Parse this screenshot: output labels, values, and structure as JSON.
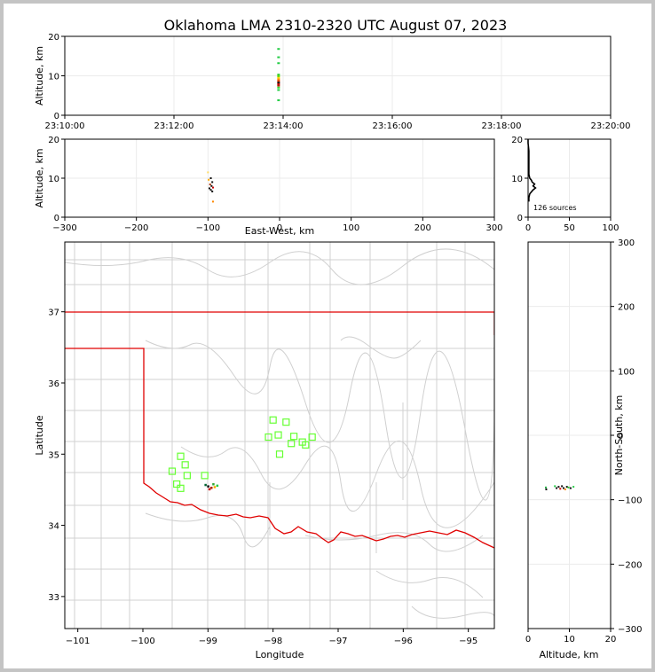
{
  "title": "Oklahoma LMA 2310-2320 UTC August 07, 2023",
  "colors": {
    "border": "#d0d0d0",
    "state_line": "#e00000",
    "station": "#66ff33",
    "grid": "#ebebeb"
  },
  "chart_data": [
    {
      "panel": "altitude-time",
      "type": "scatter",
      "ylabel": "Altitude, km",
      "ylim": [
        0,
        20
      ],
      "yticks": [
        "0",
        "10",
        "20"
      ],
      "xlim": [
        "23:10:00",
        "23:20:00"
      ],
      "xticks": [
        "23:10:00",
        "23:12:00",
        "23:14:00",
        "23:16:00",
        "23:18:00",
        "23:20:00"
      ],
      "points": [
        {
          "t": "23:13:55",
          "alt": 3.8,
          "color": "#22cc44"
        },
        {
          "t": "23:13:55",
          "alt": 6.4,
          "color": "#22cc44"
        },
        {
          "t": "23:13:55",
          "alt": 7.0,
          "color": "#33dd33"
        },
        {
          "t": "23:13:55",
          "alt": 7.5,
          "color": "#aa2200"
        },
        {
          "t": "23:13:55",
          "alt": 7.9,
          "color": "#cc0000"
        },
        {
          "t": "23:13:55",
          "alt": 8.3,
          "color": "#111111"
        },
        {
          "t": "23:13:55",
          "alt": 8.7,
          "color": "#dd3300"
        },
        {
          "t": "23:13:55",
          "alt": 9.1,
          "color": "#ff8800"
        },
        {
          "t": "23:13:55",
          "alt": 9.5,
          "color": "#ffcc00"
        },
        {
          "t": "23:13:55",
          "alt": 9.9,
          "color": "#66dd00"
        },
        {
          "t": "23:13:55",
          "alt": 10.3,
          "color": "#33cc33"
        },
        {
          "t": "23:13:55",
          "alt": 13.2,
          "color": "#22cc44"
        },
        {
          "t": "23:13:55",
          "alt": 14.7,
          "color": "#22cc44"
        },
        {
          "t": "23:13:55",
          "alt": 16.8,
          "color": "#22cc44"
        }
      ]
    },
    {
      "panel": "altitude-eastwest",
      "type": "scatter",
      "xlabel": "East-West, km",
      "ylabel": "Altitude, km",
      "xlim": [
        -300,
        300
      ],
      "xticks": [
        "−300",
        "−200",
        "−100",
        "0",
        "100",
        "200",
        "300"
      ],
      "ylim": [
        0,
        20
      ],
      "yticks": [
        "0",
        "10",
        "20"
      ],
      "points": [
        {
          "x": -100,
          "y": 11.5,
          "color": "#ffdd66"
        },
        {
          "x": -99,
          "y": 9.6,
          "color": "#ffaa00"
        },
        {
          "x": -96,
          "y": 10.0,
          "color": "#111111"
        },
        {
          "x": -94,
          "y": 9.0,
          "color": "#111111"
        },
        {
          "x": -97,
          "y": 8.4,
          "color": "#aa3300"
        },
        {
          "x": -95,
          "y": 8.0,
          "color": "#111111"
        },
        {
          "x": -93,
          "y": 7.6,
          "color": "#cc0000"
        },
        {
          "x": -98,
          "y": 7.4,
          "color": "#111111"
        },
        {
          "x": -96,
          "y": 7.0,
          "color": "#111111"
        },
        {
          "x": -94,
          "y": 6.6,
          "color": "#111111"
        },
        {
          "x": -93,
          "y": 4.0,
          "color": "#ff8800"
        }
      ]
    },
    {
      "panel": "altitude-histogram",
      "type": "line",
      "xlim": [
        0,
        100
      ],
      "xticks": [
        "0",
        "50",
        "100"
      ],
      "ylim": [
        0,
        20
      ],
      "yticks": [
        "0",
        "10",
        "20"
      ],
      "annotation": "126 sources",
      "bins": [
        {
          "alt": 4,
          "count": 1
        },
        {
          "alt": 5,
          "count": 1
        },
        {
          "alt": 6,
          "count": 2
        },
        {
          "alt": 7,
          "count": 6
        },
        {
          "alt": 7.5,
          "count": 9
        },
        {
          "alt": 8,
          "count": 6
        },
        {
          "alt": 8.5,
          "count": 8
        },
        {
          "alt": 9,
          "count": 5
        },
        {
          "alt": 9.5,
          "count": 4
        },
        {
          "alt": 10,
          "count": 2
        },
        {
          "alt": 11,
          "count": 1
        },
        {
          "alt": 12,
          "count": 1
        },
        {
          "alt": 13,
          "count": 1
        },
        {
          "alt": 14,
          "count": 1
        },
        {
          "alt": 16,
          "count": 1
        },
        {
          "alt": 17,
          "count": 1
        },
        {
          "alt": 19,
          "count": 0
        },
        {
          "alt": 20,
          "count": 0
        }
      ]
    },
    {
      "panel": "plan-view-map",
      "type": "scatter",
      "xlabel": "Longitude",
      "ylabel": "Latitude",
      "xlim": [
        -101.2,
        -94.6
      ],
      "xticks": [
        "−101",
        "−100",
        "−99",
        "−98",
        "−97",
        "−96",
        "−95"
      ],
      "ylim": [
        32.55,
        37.98
      ],
      "yticks": [
        "33",
        "34",
        "35",
        "36",
        "37"
      ],
      "stations": [
        {
          "lon": -98.0,
          "lat": 35.48
        },
        {
          "lon": -97.8,
          "lat": 35.45
        },
        {
          "lon": -98.07,
          "lat": 35.24
        },
        {
          "lon": -97.92,
          "lat": 35.27
        },
        {
          "lon": -97.68,
          "lat": 35.25
        },
        {
          "lon": -97.72,
          "lat": 35.15
        },
        {
          "lon": -97.55,
          "lat": 35.17
        },
        {
          "lon": -97.4,
          "lat": 35.24
        },
        {
          "lon": -97.5,
          "lat": 35.13
        },
        {
          "lon": -97.9,
          "lat": 35.0
        },
        {
          "lon": -99.42,
          "lat": 34.97
        },
        {
          "lon": -99.35,
          "lat": 34.85
        },
        {
          "lon": -99.55,
          "lat": 34.76
        },
        {
          "lon": -99.32,
          "lat": 34.7
        },
        {
          "lon": -99.05,
          "lat": 34.7
        },
        {
          "lon": -99.48,
          "lat": 34.58
        },
        {
          "lon": -99.42,
          "lat": 34.52
        }
      ],
      "sources": [
        {
          "lon": -99.0,
          "lat": 34.55,
          "color": "#111111"
        },
        {
          "lon": -98.95,
          "lat": 34.53,
          "color": "#aa2200"
        },
        {
          "lon": -98.9,
          "lat": 34.54,
          "color": "#ffaa00"
        },
        {
          "lon": -98.98,
          "lat": 34.51,
          "color": "#cc0000"
        },
        {
          "lon": -98.86,
          "lat": 34.56,
          "color": "#22cc44"
        },
        {
          "lon": -98.92,
          "lat": 34.58,
          "color": "#33aa33"
        },
        {
          "lon": -99.04,
          "lat": 34.57,
          "color": "#006633"
        }
      ]
    },
    {
      "panel": "northsouth-altitude",
      "type": "scatter",
      "xlabel": "Altitude, km",
      "ylabel": "North-South, km",
      "xlim": [
        0,
        20
      ],
      "xticks": [
        "0",
        "10",
        "20"
      ],
      "ylim": [
        -300,
        300
      ],
      "yticks": [
        "−300",
        "−200",
        "−100",
        "0",
        "100",
        "200",
        "300"
      ],
      "points": [
        {
          "x": 4.3,
          "y": -81,
          "color": "#22aa44"
        },
        {
          "x": 4.4,
          "y": -84,
          "color": "#111111"
        },
        {
          "x": 6.5,
          "y": -79,
          "color": "#22cc44"
        },
        {
          "x": 6.9,
          "y": -82,
          "color": "#111111"
        },
        {
          "x": 7.4,
          "y": -80,
          "color": "#111111"
        },
        {
          "x": 7.8,
          "y": -83,
          "color": "#cc0000"
        },
        {
          "x": 8.2,
          "y": -79,
          "color": "#111111"
        },
        {
          "x": 8.6,
          "y": -82,
          "color": "#111111"
        },
        {
          "x": 9.0,
          "y": -84,
          "color": "#ff8800"
        },
        {
          "x": 9.4,
          "y": -80,
          "color": "#111111"
        },
        {
          "x": 9.8,
          "y": -81,
          "color": "#33cc33"
        },
        {
          "x": 10.3,
          "y": -82,
          "color": "#111111"
        },
        {
          "x": 11.0,
          "y": -80,
          "color": "#22cc44"
        }
      ]
    }
  ]
}
